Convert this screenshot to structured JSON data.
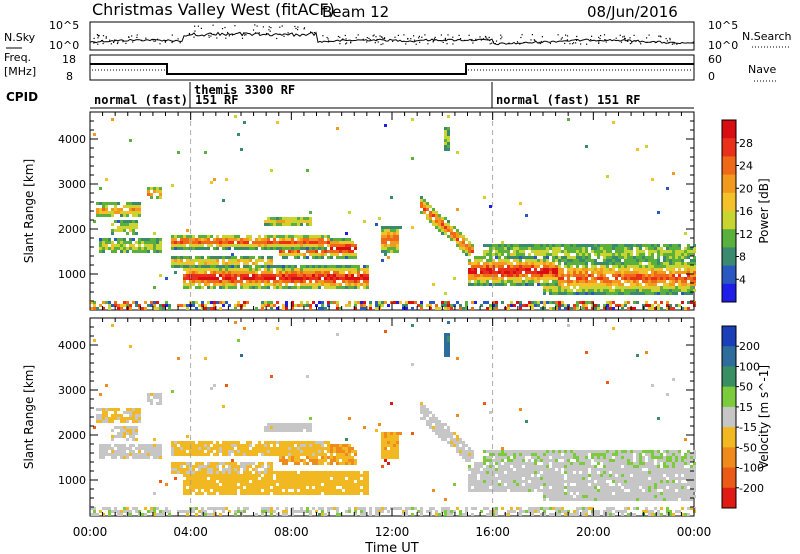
{
  "header": {
    "site": "Christmas Valley West (fitACF)",
    "beam": "Beam 12",
    "date": "08/Jun/2016"
  },
  "panel_labels": {
    "nsky": "N.Sky",
    "freq_1": "Freq.",
    "freq_2": "[MHz]",
    "cpid": "CPID",
    "nsearch": "N.Search",
    "nave": "Nave"
  },
  "noise_axis": {
    "left_ticks": [
      "10^5",
      "10^0"
    ],
    "right_ticks": [
      "10^5",
      "10^0"
    ]
  },
  "freq_axis": {
    "left_ticks": [
      "18",
      "8"
    ],
    "right_ticks": [
      "60",
      "0"
    ]
  },
  "cpid_segments": [
    {
      "label": "normal (fast) 151 RF",
      "start_hour": 0,
      "end_hour": 4
    },
    {
      "label": "themis 3300 RF",
      "start_hour": 4,
      "end_hour": 16
    },
    {
      "label": "normal (fast) 151 RF",
      "start_hour": 16,
      "end_hour": 24
    }
  ],
  "chart_data": [
    {
      "type": "heatmap",
      "title": "",
      "ylabel": "Slant Range [km]",
      "xlim": [
        0,
        24
      ],
      "ylim": [
        200,
        4600
      ],
      "y_ticks": [
        "1000",
        "2000",
        "3000",
        "4000"
      ],
      "colorbar": {
        "label": "Power [dB]",
        "ticks": [
          "4",
          "8",
          "12",
          "16",
          "20",
          "24",
          "28"
        ],
        "range": [
          0,
          32
        ],
        "colors": [
          "#1e1ee6",
          "#2858c0",
          "#3a8a70",
          "#59b03c",
          "#c8d430",
          "#f3c22a",
          "#f29a1e",
          "#ef6a18",
          "#e8301a",
          "#d80e12"
        ]
      }
    },
    {
      "type": "heatmap",
      "title": "",
      "ylabel": "Slant Range [km]",
      "xlabel": "Time UT",
      "xlim": [
        0,
        24
      ],
      "ylim": [
        200,
        4600
      ],
      "x_ticks": [
        "00:00",
        "04:00",
        "08:00",
        "12:00",
        "16:00",
        "20:00",
        "00:00"
      ],
      "y_ticks": [
        "1000",
        "2000",
        "3000",
        "4000"
      ],
      "colorbar": {
        "label": "Velocity [m s^-1]",
        "ticks": [
          "200",
          "100",
          "50",
          "15",
          "-15",
          "-50",
          "-100",
          "-200"
        ],
        "range": [
          -250,
          250
        ],
        "colors": [
          "#1a3fb8",
          "#2e6c9c",
          "#3a8f62",
          "#7ccb3c",
          "#c6c6c6",
          "#f2b822",
          "#f08a1c",
          "#ec5a18",
          "#e01a14"
        ]
      }
    }
  ]
}
